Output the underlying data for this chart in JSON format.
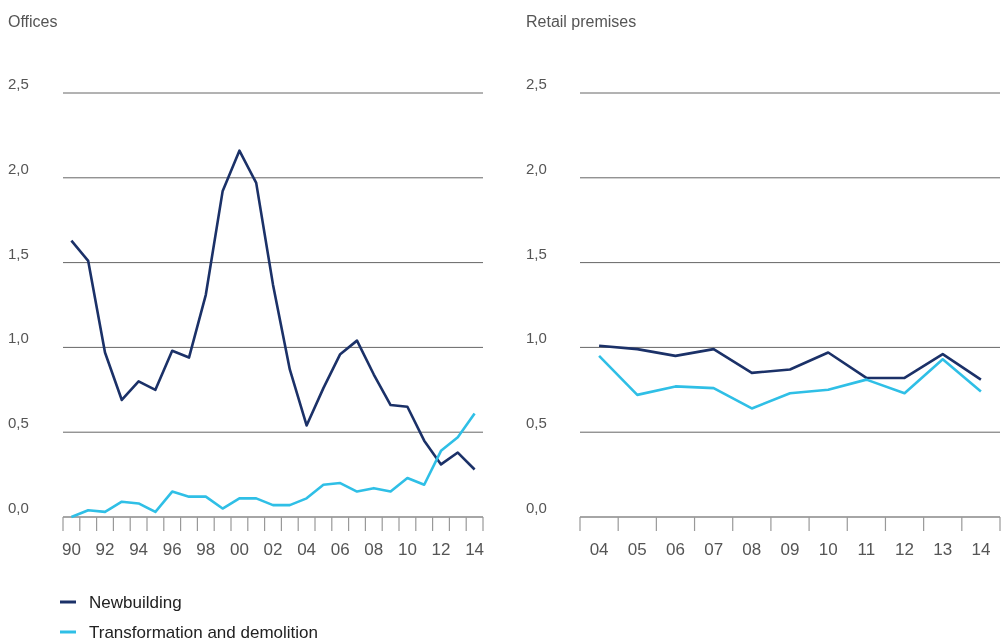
{
  "chart_data": [
    {
      "type": "line",
      "title": "Offices",
      "categories": [
        "90",
        null,
        "92",
        null,
        "94",
        null,
        "96",
        null,
        "98",
        null,
        "00",
        null,
        "02",
        null,
        "04",
        null,
        "06",
        null,
        "08",
        null,
        "10",
        null,
        "12",
        null,
        "14"
      ],
      "series": [
        {
          "name": "Newbuilding",
          "color": "#1b3168",
          "values": [
            1.63,
            1.51,
            0.97,
            0.69,
            0.8,
            0.75,
            0.98,
            0.94,
            1.31,
            1.92,
            2.16,
            1.97,
            1.37,
            0.87,
            0.54,
            0.76,
            0.96,
            1.04,
            0.84,
            0.66,
            0.65,
            0.45,
            0.31,
            0.38,
            0.28
          ]
        },
        {
          "name": "Transformation and demolition",
          "color": "#2fbfe6",
          "values": [
            0.0,
            0.04,
            0.03,
            0.09,
            0.08,
            0.03,
            0.15,
            0.12,
            0.12,
            0.05,
            0.11,
            0.11,
            0.07,
            0.07,
            0.11,
            0.19,
            0.2,
            0.15,
            0.17,
            0.15,
            0.23,
            0.19,
            0.39,
            0.47,
            0.61
          ]
        }
      ],
      "ylim": [
        0,
        2.5
      ],
      "yticks": [
        {
          "value": 0,
          "label": "0,0"
        },
        {
          "value": 0.5,
          "label": "0,5"
        },
        {
          "value": 1,
          "label": "1,0"
        },
        {
          "value": 1.5,
          "label": "1,5"
        },
        {
          "value": 2,
          "label": "2,0"
        },
        {
          "value": 2.5,
          "label": "2,5"
        }
      ],
      "grid": "y",
      "legend": "bottom left"
    },
    {
      "type": "line",
      "title": "Retail premises",
      "categories": [
        "04",
        "05",
        "06",
        "07",
        "08",
        "09",
        "10",
        "11",
        "12",
        "13",
        "14"
      ],
      "series": [
        {
          "color": "#1b3168",
          "values": [
            1.01,
            0.99,
            0.95,
            0.99,
            0.85,
            0.87,
            0.97,
            0.82,
            0.82,
            0.96,
            0.81
          ]
        },
        {
          "color": "#2fbfe6",
          "values": [
            0.95,
            0.72,
            0.77,
            0.76,
            0.64,
            0.73,
            0.75,
            0.81,
            0.73,
            0.93,
            0.74
          ]
        }
      ],
      "ylim": [
        0,
        2.5
      ],
      "yticks": [
        {
          "value": 0,
          "label": "0,0"
        },
        {
          "value": 0.5,
          "label": "0,5"
        },
        {
          "value": 1,
          "label": "1,0"
        },
        {
          "value": 1.5,
          "label": "1,5"
        },
        {
          "value": 2,
          "label": "2,0"
        },
        {
          "value": 2.5,
          "label": "2,5"
        }
      ],
      "grid": "y"
    }
  ]
}
